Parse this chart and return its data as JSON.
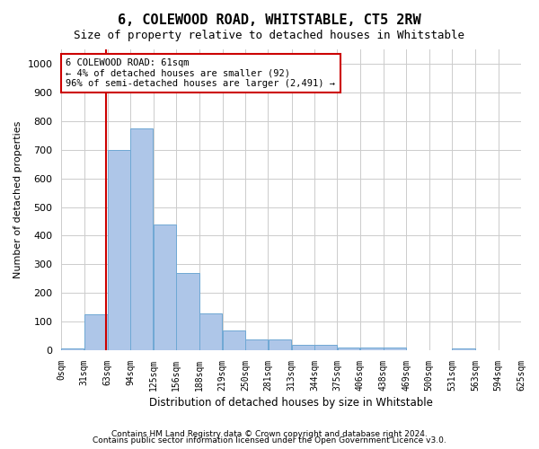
{
  "title": "6, COLEWOOD ROAD, WHITSTABLE, CT5 2RW",
  "subtitle": "Size of property relative to detached houses in Whitstable",
  "xlabel": "Distribution of detached houses by size in Whitstable",
  "ylabel": "Number of detached properties",
  "footer_line1": "Contains HM Land Registry data © Crown copyright and database right 2024.",
  "footer_line2": "Contains public sector information licensed under the Open Government Licence v3.0.",
  "bar_edges": [
    0,
    31,
    63,
    94,
    125,
    156,
    188,
    219,
    250,
    281,
    313,
    344,
    375,
    406,
    438,
    469,
    500,
    531,
    563,
    594,
    625
  ],
  "bar_values": [
    5,
    125,
    700,
    775,
    440,
    270,
    130,
    68,
    37,
    37,
    20,
    20,
    10,
    10,
    10,
    0,
    0,
    7,
    0,
    0
  ],
  "bar_color": "#aec6e8",
  "bar_edge_color": "#6fa8d4",
  "property_size": 61,
  "annotation_text": "6 COLEWOOD ROAD: 61sqm\n← 4% of detached houses are smaller (92)\n96% of semi-detached houses are larger (2,491) →",
  "annotation_box_color": "#ffffff",
  "annotation_box_edge_color": "#cc0000",
  "vline_color": "#cc0000",
  "ylim": [
    0,
    1050
  ],
  "yticks": [
    0,
    100,
    200,
    300,
    400,
    500,
    600,
    700,
    800,
    900,
    1000
  ],
  "background_color": "#ffffff",
  "grid_color": "#cccccc"
}
